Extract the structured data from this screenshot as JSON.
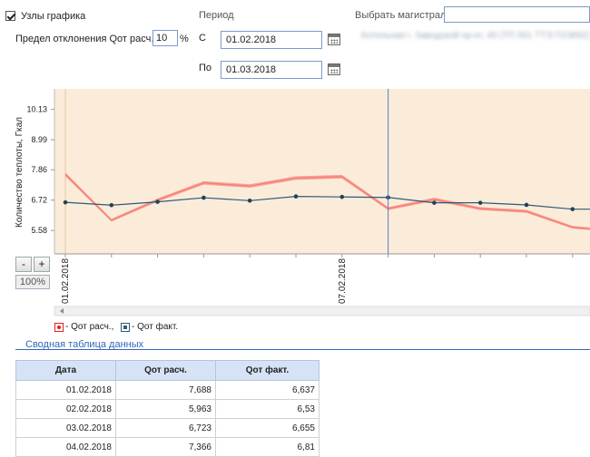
{
  "controls": {
    "nodes_label": "Узлы графика",
    "deviation_label": "Предел отклонения Qот расч., ±",
    "deviation_value": "10",
    "deviation_unit": "%",
    "period_label": "Период",
    "from_label": "С",
    "from_value": "01.02.2018",
    "to_label": "По",
    "to_value": "01.03.2018",
    "main_label": "Выбрать магистраль",
    "main_value": "",
    "blurred_address": "Котельная г. Заводской пр-кт, 40 (ТП 001 ТТЭ ГОЭ002)"
  },
  "chart_data": {
    "type": "line",
    "ylabel": "Количество теплоты, Гкал",
    "yticks": [
      5.58,
      6.72,
      7.86,
      8.99,
      10.13
    ],
    "yticks_labels": [
      "5.58",
      "6.72",
      "7.86",
      "8.99",
      "10.13"
    ],
    "ylim": [
      4.7,
      10.9
    ],
    "xtick_labels": [
      {
        "index": 0,
        "label": "01.02.2018"
      },
      {
        "index": 6,
        "label": "07.02.2018"
      }
    ],
    "cursor_index": 7,
    "band_fraction": 0.1,
    "series": [
      {
        "name": "Qот расч.",
        "color": "#f47c72",
        "values": [
          7.688,
          5.963,
          6.723,
          7.366,
          7.25,
          7.55,
          7.6,
          6.4,
          6.75,
          6.4,
          6.3,
          5.7,
          5.55
        ]
      },
      {
        "name": "Qот факт.",
        "color": "#2d5a7a",
        "values": [
          6.637,
          6.53,
          6.655,
          6.81,
          6.7,
          6.86,
          6.84,
          6.82,
          6.62,
          6.62,
          6.54,
          6.38,
          6.38
        ]
      }
    ],
    "legend_position": "bottom-left",
    "grid": false
  },
  "zoom": {
    "minus": "-",
    "plus": "+",
    "level": "100%"
  },
  "legend": [
    {
      "label": "- Qот расч.,",
      "color": "#e02020"
    },
    {
      "label": "- Qот факт.",
      "color": "#2d5a7a"
    }
  ],
  "summary_link": "Сводная таблица данных",
  "table": {
    "headers": [
      "Дата",
      "Qот расч.",
      "Qот факт."
    ],
    "rows": [
      [
        "01.02.2018",
        "7,688",
        "6,637"
      ],
      [
        "02.02.2018",
        "5,963",
        "6,53"
      ],
      [
        "03.02.2018",
        "6,723",
        "6,655"
      ],
      [
        "04.02.2018",
        "7,366",
        "6,81"
      ]
    ]
  }
}
